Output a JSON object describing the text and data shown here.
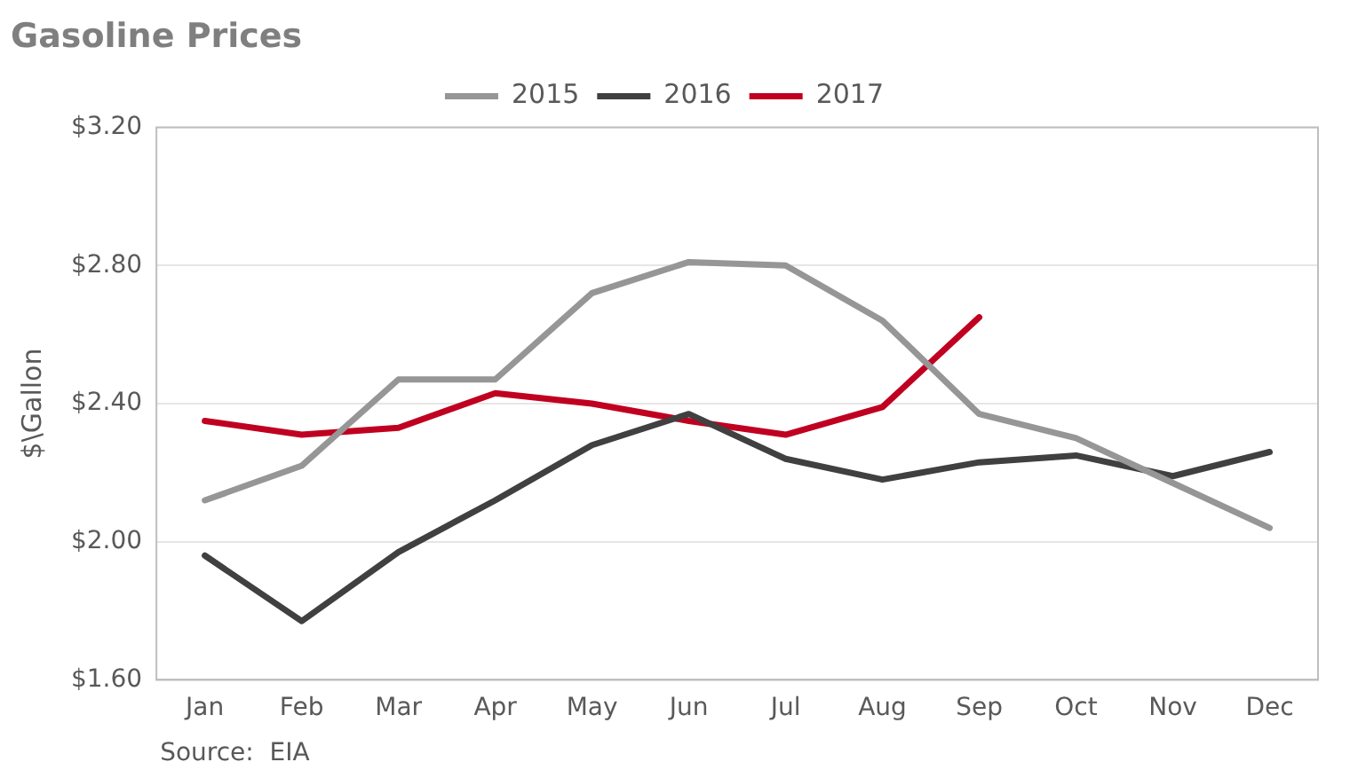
{
  "chart_data": {
    "type": "line",
    "title": "Gasoline Prices",
    "ylabel": "$\\Gallon",
    "categories": [
      "Jan",
      "Feb",
      "Mar",
      "Apr",
      "May",
      "Jun",
      "Jul",
      "Aug",
      "Sep",
      "Oct",
      "Nov",
      "Dec"
    ],
    "series": [
      {
        "name": "2015",
        "color": "#969696",
        "values": [
          2.12,
          2.22,
          2.47,
          2.47,
          2.72,
          2.81,
          2.8,
          2.64,
          2.37,
          2.3,
          2.17,
          2.04
        ]
      },
      {
        "name": "2016",
        "color": "#404040",
        "values": [
          1.96,
          1.77,
          1.97,
          2.12,
          2.28,
          2.37,
          2.24,
          2.18,
          2.23,
          2.25,
          2.19,
          2.26
        ]
      },
      {
        "name": "2017",
        "color": "#c00020",
        "values": [
          2.35,
          2.31,
          2.33,
          2.43,
          2.4,
          2.35,
          2.31,
          2.39,
          2.65,
          null,
          null,
          null
        ]
      }
    ],
    "ylim": [
      1.6,
      3.2
    ],
    "yticks": [
      {
        "value": 1.6,
        "label": "$1.60"
      },
      {
        "value": 2.0,
        "label": "$2.00"
      },
      {
        "value": 2.4,
        "label": "$2.40"
      },
      {
        "value": 2.8,
        "label": "$2.80"
      },
      {
        "value": 3.2,
        "label": "$3.20"
      }
    ],
    "grid": "y",
    "legend": "top",
    "marker": "none",
    "line_style": "solid",
    "annotations": [
      "Source:  EIA"
    ]
  }
}
